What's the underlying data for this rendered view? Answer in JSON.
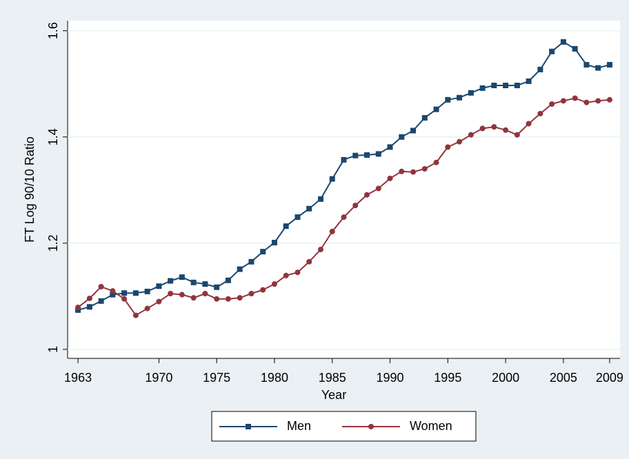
{
  "chart_data": {
    "type": "line",
    "xlabel": "Year",
    "ylabel": "FT Log 90/10 Ratio",
    "x": [
      1963,
      1964,
      1965,
      1966,
      1967,
      1968,
      1969,
      1970,
      1971,
      1972,
      1973,
      1974,
      1975,
      1976,
      1977,
      1978,
      1979,
      1980,
      1981,
      1982,
      1983,
      1984,
      1985,
      1986,
      1987,
      1988,
      1989,
      1990,
      1991,
      1992,
      1993,
      1994,
      1995,
      1996,
      1997,
      1998,
      1999,
      2000,
      2001,
      2002,
      2003,
      2004,
      2005,
      2006,
      2007,
      2008,
      2009
    ],
    "series": [
      {
        "name": "Men",
        "color": "#1a476f",
        "marker": "square",
        "values": [
          1.074,
          1.08,
          1.091,
          1.103,
          1.106,
          1.106,
          1.109,
          1.119,
          1.129,
          1.136,
          1.126,
          1.123,
          1.117,
          1.13,
          1.151,
          1.165,
          1.184,
          1.201,
          1.232,
          1.249,
          1.265,
          1.283,
          1.321,
          1.357,
          1.365,
          1.366,
          1.368,
          1.381,
          1.4,
          1.412,
          1.436,
          1.452,
          1.47,
          1.474,
          1.483,
          1.492,
          1.497,
          1.497,
          1.497,
          1.505,
          1.527,
          1.561,
          1.579,
          1.566,
          1.536,
          1.53,
          1.536
        ]
      },
      {
        "name": "Women",
        "color": "#90353b",
        "marker": "circle",
        "values": [
          1.079,
          1.096,
          1.118,
          1.11,
          1.095,
          1.064,
          1.077,
          1.09,
          1.105,
          1.103,
          1.097,
          1.105,
          1.095,
          1.095,
          1.097,
          1.105,
          1.112,
          1.123,
          1.139,
          1.145,
          1.165,
          1.188,
          1.222,
          1.249,
          1.271,
          1.291,
          1.303,
          1.322,
          1.335,
          1.334,
          1.34,
          1.352,
          1.381,
          1.391,
          1.404,
          1.416,
          1.419,
          1.413,
          1.404,
          1.425,
          1.444,
          1.462,
          1.468,
          1.473,
          1.465,
          1.468,
          1.47
        ]
      }
    ],
    "xlim": [
      1962.1,
      2009.9
    ],
    "xticks": [
      1963,
      1970,
      1975,
      1980,
      1985,
      1990,
      1995,
      2000,
      2005,
      2009
    ],
    "ylim": [
      0.983,
      1.619
    ],
    "yticks": [
      1,
      1.2,
      1.4,
      1.6
    ],
    "grid": true
  }
}
